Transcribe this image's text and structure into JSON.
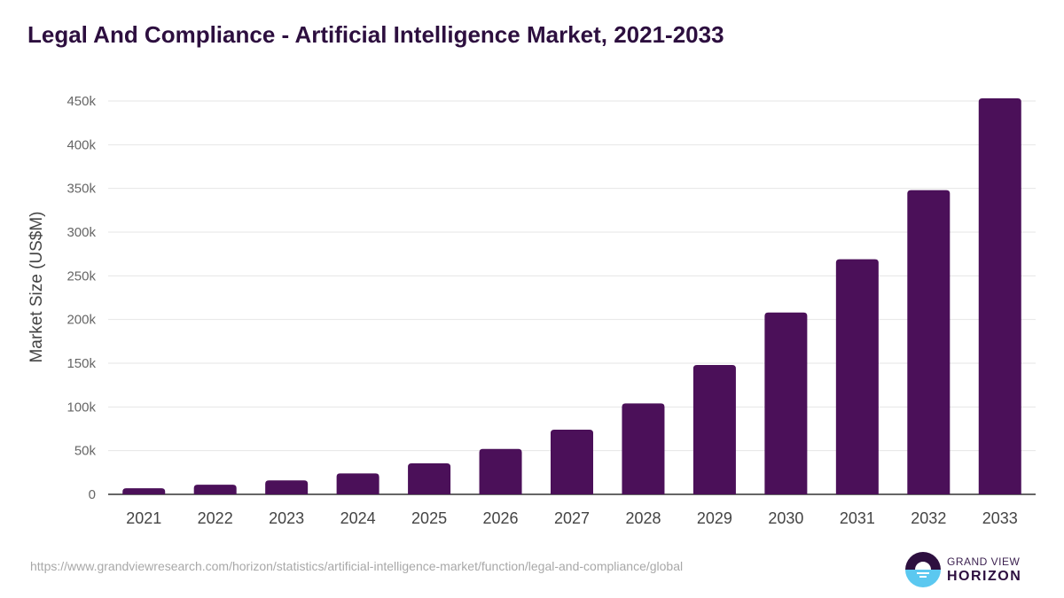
{
  "chart_data": {
    "type": "bar",
    "title": "Legal And Compliance - Artificial Intelligence Market, 2021-2033",
    "xlabel": "",
    "ylabel": "Market Size (US$M)",
    "ylim": [
      0,
      450000
    ],
    "yticks": [
      0,
      50000,
      100000,
      150000,
      200000,
      250000,
      300000,
      350000,
      400000,
      450000
    ],
    "ytick_labels": [
      "0",
      "50k",
      "100k",
      "150k",
      "200k",
      "250k",
      "300k",
      "350k",
      "400k",
      "450k"
    ],
    "grid": true,
    "categories": [
      "2021",
      "2022",
      "2023",
      "2024",
      "2025",
      "2026",
      "2027",
      "2028",
      "2029",
      "2030",
      "2031",
      "2032",
      "2033"
    ],
    "values": [
      7000,
      11000,
      16000,
      24000,
      35500,
      52000,
      74000,
      104000,
      148000,
      208000,
      269000,
      348000,
      453000
    ],
    "bar_color": "#4b1059"
  },
  "footer": {
    "source_url": "https://www.grandviewresearch.com/horizon/statistics/artificial-intelligence-market/function/legal-and-compliance/global",
    "logo_line1": "GRAND VIEW",
    "logo_line2": "HORIZON"
  }
}
